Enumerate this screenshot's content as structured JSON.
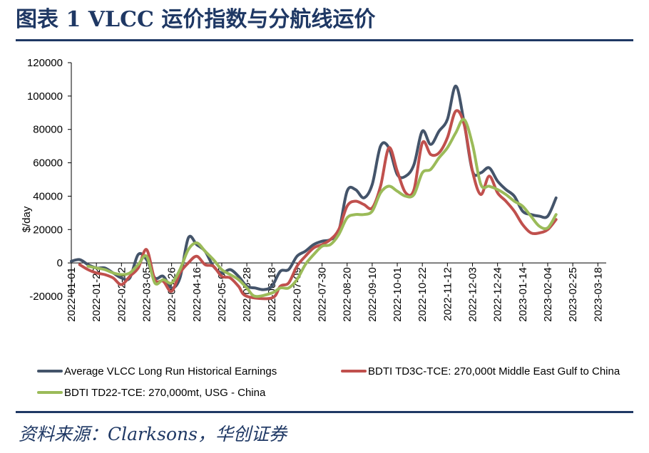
{
  "figure": {
    "title": "图表 1  VLCC 运价指数与分航线运价",
    "source": "资料来源：Clarksons，华创证券"
  },
  "chart_data": {
    "type": "line",
    "ylabel": "$/day",
    "xlabel": "",
    "ylim": [
      -20000,
      120000
    ],
    "yticks": [
      -20000,
      0,
      20000,
      40000,
      60000,
      80000,
      100000,
      120000
    ],
    "xlim": [
      "2022-01-01",
      "2023-03-25"
    ],
    "xticks": [
      "2022-01-01",
      "2022-01-22",
      "2022-02-12",
      "2022-03-05",
      "2022-03-26",
      "2022-04-16",
      "2022-05-07",
      "2022-05-28",
      "2022-06-18",
      "2022-07-09",
      "2022-07-30",
      "2022-08-20",
      "2022-09-10",
      "2022-10-01",
      "2022-10-22",
      "2022-11-12",
      "2022-12-03",
      "2022-12-24",
      "2023-01-14",
      "2023-02-04",
      "2023-02-25",
      "2023-03-18"
    ],
    "grid": false,
    "legend_position": "bottom",
    "series": [
      {
        "name": "Average VLCC Long Run Historical Earnings",
        "color": "#44546a",
        "points": [
          [
            "2022-01-01",
            1000
          ],
          [
            "2022-01-08",
            2000
          ],
          [
            "2022-01-15",
            -1000
          ],
          [
            "2022-01-22",
            -3000
          ],
          [
            "2022-01-29",
            -3000
          ],
          [
            "2022-02-05",
            -6000
          ],
          [
            "2022-02-12",
            -9000
          ],
          [
            "2022-02-19",
            -9000
          ],
          [
            "2022-02-26",
            5000
          ],
          [
            "2022-03-05",
            2000
          ],
          [
            "2022-03-12",
            -9000
          ],
          [
            "2022-03-19",
            -8000
          ],
          [
            "2022-03-26",
            -15000
          ],
          [
            "2022-04-02",
            -9000
          ],
          [
            "2022-04-09",
            15000
          ],
          [
            "2022-04-16",
            11000
          ],
          [
            "2022-04-23",
            7000
          ],
          [
            "2022-04-30",
            -2000
          ],
          [
            "2022-05-07",
            -6000
          ],
          [
            "2022-05-14",
            -4000
          ],
          [
            "2022-05-21",
            -8000
          ],
          [
            "2022-05-28",
            -14000
          ],
          [
            "2022-06-04",
            -15000
          ],
          [
            "2022-06-11",
            -16000
          ],
          [
            "2022-06-18",
            -14000
          ],
          [
            "2022-06-25",
            -5000
          ],
          [
            "2022-07-02",
            -4000
          ],
          [
            "2022-07-09",
            4000
          ],
          [
            "2022-07-16",
            7000
          ],
          [
            "2022-07-23",
            11000
          ],
          [
            "2022-07-30",
            13000
          ],
          [
            "2022-08-06",
            14000
          ],
          [
            "2022-08-13",
            19000
          ],
          [
            "2022-08-20",
            43000
          ],
          [
            "2022-08-27",
            44000
          ],
          [
            "2022-09-03",
            39000
          ],
          [
            "2022-09-10",
            47000
          ],
          [
            "2022-09-17",
            70000
          ],
          [
            "2022-09-24",
            69000
          ],
          [
            "2022-10-01",
            53000
          ],
          [
            "2022-10-08",
            52000
          ],
          [
            "2022-10-15",
            59000
          ],
          [
            "2022-10-22",
            79000
          ],
          [
            "2022-10-29",
            71000
          ],
          [
            "2022-11-05",
            79000
          ],
          [
            "2022-11-12",
            86000
          ],
          [
            "2022-11-19",
            106000
          ],
          [
            "2022-11-26",
            84000
          ],
          [
            "2022-12-03",
            55000
          ],
          [
            "2022-12-10",
            54000
          ],
          [
            "2022-12-17",
            57000
          ],
          [
            "2022-12-24",
            49000
          ],
          [
            "2022-12-31",
            44000
          ],
          [
            "2023-01-07",
            40000
          ],
          [
            "2023-01-14",
            31000
          ],
          [
            "2023-01-21",
            29000
          ],
          [
            "2023-01-28",
            28000
          ],
          [
            "2023-02-04",
            28000
          ],
          [
            "2023-02-11",
            39000
          ]
        ]
      },
      {
        "name": "BDTI TD3C-TCE: 270,000t Middle East Gulf to China",
        "color": "#c0504d",
        "points": [
          [
            "2022-01-08",
            -1000
          ],
          [
            "2022-01-15",
            -4000
          ],
          [
            "2022-01-22",
            -6000
          ],
          [
            "2022-01-29",
            -7000
          ],
          [
            "2022-02-05",
            -9000
          ],
          [
            "2022-02-12",
            -13000
          ],
          [
            "2022-02-19",
            -8000
          ],
          [
            "2022-02-26",
            -3000
          ],
          [
            "2022-03-05",
            8000
          ],
          [
            "2022-03-12",
            -10000
          ],
          [
            "2022-03-19",
            -11000
          ],
          [
            "2022-03-26",
            -17000
          ],
          [
            "2022-04-02",
            -6000
          ],
          [
            "2022-04-09",
            0
          ],
          [
            "2022-04-16",
            4000
          ],
          [
            "2022-04-23",
            -1000
          ],
          [
            "2022-04-30",
            -2000
          ],
          [
            "2022-05-07",
            -8000
          ],
          [
            "2022-05-14",
            -9000
          ],
          [
            "2022-05-21",
            -14000
          ],
          [
            "2022-05-28",
            -20000
          ],
          [
            "2022-06-18",
            -21000
          ],
          [
            "2022-06-25",
            -14000
          ],
          [
            "2022-07-02",
            -12000
          ],
          [
            "2022-07-09",
            -2000
          ],
          [
            "2022-07-16",
            4000
          ],
          [
            "2022-07-23",
            9000
          ],
          [
            "2022-07-30",
            11000
          ],
          [
            "2022-08-06",
            14000
          ],
          [
            "2022-08-13",
            20000
          ],
          [
            "2022-08-20",
            34000
          ],
          [
            "2022-08-27",
            37000
          ],
          [
            "2022-09-03",
            35000
          ],
          [
            "2022-09-10",
            33000
          ],
          [
            "2022-09-17",
            46000
          ],
          [
            "2022-09-24",
            69000
          ],
          [
            "2022-10-01",
            55000
          ],
          [
            "2022-10-08",
            42000
          ],
          [
            "2022-10-15",
            44000
          ],
          [
            "2022-10-22",
            72000
          ],
          [
            "2022-10-29",
            65000
          ],
          [
            "2022-11-05",
            66000
          ],
          [
            "2022-11-12",
            75000
          ],
          [
            "2022-11-19",
            91000
          ],
          [
            "2022-11-26",
            83000
          ],
          [
            "2022-12-03",
            55000
          ],
          [
            "2022-12-10",
            41000
          ],
          [
            "2022-12-17",
            52000
          ],
          [
            "2022-12-24",
            42000
          ],
          [
            "2022-12-31",
            37000
          ],
          [
            "2023-01-07",
            31000
          ],
          [
            "2023-01-14",
            23000
          ],
          [
            "2023-01-21",
            18000
          ],
          [
            "2023-01-28",
            18000
          ],
          [
            "2023-02-04",
            20000
          ],
          [
            "2023-02-11",
            26000
          ]
        ]
      },
      {
        "name": "BDTI TD22-TCE: 270,000mt, USG - China",
        "color": "#9bbb59",
        "points": [
          [
            "2022-01-15",
            -2000
          ],
          [
            "2022-01-22",
            -3000
          ],
          [
            "2022-01-29",
            -4000
          ],
          [
            "2022-02-05",
            -6000
          ],
          [
            "2022-02-12",
            -7000
          ],
          [
            "2022-02-19",
            -6000
          ],
          [
            "2022-02-26",
            -1000
          ],
          [
            "2022-03-05",
            4000
          ],
          [
            "2022-03-12",
            -12000
          ],
          [
            "2022-03-19",
            -10000
          ],
          [
            "2022-03-26",
            -12000
          ],
          [
            "2022-04-02",
            -4000
          ],
          [
            "2022-04-09",
            8000
          ],
          [
            "2022-04-16",
            12000
          ],
          [
            "2022-04-23",
            7000
          ],
          [
            "2022-04-30",
            2000
          ],
          [
            "2022-05-07",
            -4000
          ],
          [
            "2022-05-14",
            -7000
          ],
          [
            "2022-05-21",
            -10000
          ],
          [
            "2022-05-28",
            -15000
          ],
          [
            "2022-06-04",
            -20000
          ],
          [
            "2022-06-18",
            -18000
          ],
          [
            "2022-06-25",
            -15000
          ],
          [
            "2022-07-02",
            -15000
          ],
          [
            "2022-07-09",
            -10000
          ],
          [
            "2022-07-16",
            -1000
          ],
          [
            "2022-07-23",
            5000
          ],
          [
            "2022-07-30",
            10000
          ],
          [
            "2022-08-06",
            11000
          ],
          [
            "2022-08-13",
            17000
          ],
          [
            "2022-08-20",
            27000
          ],
          [
            "2022-08-27",
            29000
          ],
          [
            "2022-09-03",
            29000
          ],
          [
            "2022-09-10",
            31000
          ],
          [
            "2022-09-17",
            42000
          ],
          [
            "2022-09-24",
            46000
          ],
          [
            "2022-10-01",
            43000
          ],
          [
            "2022-10-08",
            40000
          ],
          [
            "2022-10-15",
            41000
          ],
          [
            "2022-10-22",
            54000
          ],
          [
            "2022-10-29",
            56000
          ],
          [
            "2022-11-05",
            63000
          ],
          [
            "2022-11-12",
            69000
          ],
          [
            "2022-11-19",
            78000
          ],
          [
            "2022-11-26",
            86000
          ],
          [
            "2022-12-03",
            71000
          ],
          [
            "2022-12-10",
            47000
          ],
          [
            "2022-12-17",
            46000
          ],
          [
            "2022-12-24",
            44000
          ],
          [
            "2022-12-31",
            41000
          ],
          [
            "2023-01-07",
            37000
          ],
          [
            "2023-01-14",
            34000
          ],
          [
            "2023-01-21",
            28000
          ],
          [
            "2023-01-28",
            22000
          ],
          [
            "2023-02-04",
            21000
          ],
          [
            "2023-02-11",
            29000
          ]
        ]
      }
    ]
  }
}
